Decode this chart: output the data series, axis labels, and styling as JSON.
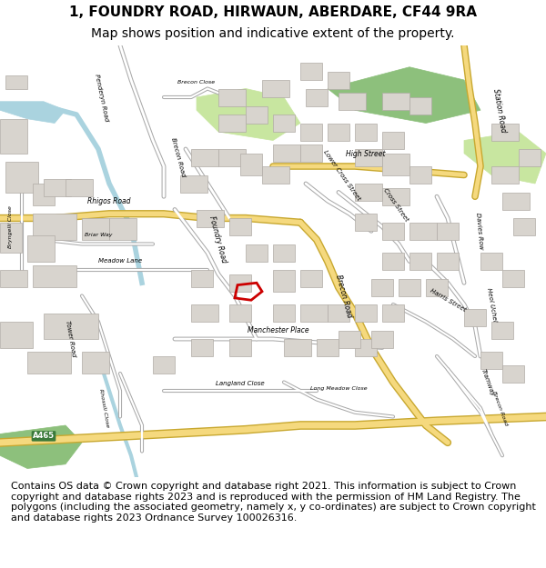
{
  "title_line1": "1, FOUNDRY ROAD, HIRWAUN, ABERDARE, CF44 9RA",
  "title_line2": "Map shows position and indicative extent of the property.",
  "footer_text": "Contains OS data © Crown copyright and database right 2021. This information is subject to Crown copyright and database rights 2023 and is reproduced with the permission of HM Land Registry. The polygons (including the associated geometry, namely x, y co-ordinates) are subject to Crown copyright and database rights 2023 Ordnance Survey 100026316.",
  "title_fontsize": 11,
  "subtitle_fontsize": 10,
  "footer_fontsize": 8,
  "fig_width": 6.0,
  "fig_height": 6.25,
  "map_bg_color": "#f0ece8",
  "header_bg": "#ffffff",
  "footer_bg": "#ffffff",
  "road_major_color": "#f5d97e",
  "road_major_edge": "#c8a830",
  "road_minor_color": "#ffffff",
  "road_minor_edge": "#aaaaaa",
  "building_color": "#d8d4ce",
  "building_edge_color": "#b0aba5",
  "water_color": "#aad3df",
  "water_edge": "#88bfd0",
  "green_color": "#c8e6a0",
  "green_dark": "#8dc07c",
  "plot_edge_color": "#cc0000",
  "plot_linewidth": 2.0,
  "title_color": "#000000",
  "footer_color": "#000000"
}
